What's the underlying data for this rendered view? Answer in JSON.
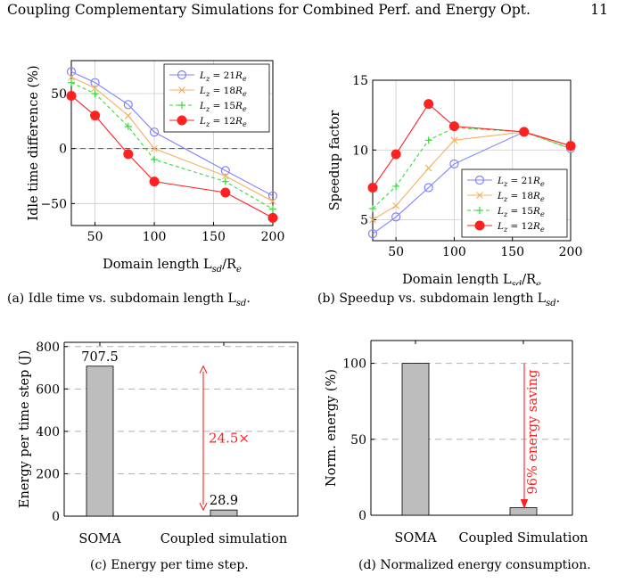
{
  "header": {
    "running_title": "Coupling Complementary Simulations for Combined Perf. and Energy Opt.",
    "page_number": "11"
  },
  "captions": {
    "a": "(a) Idle time vs. subdomain length L",
    "a_sub": "sd",
    "b": "(b) Speedup vs. subdomain length L",
    "b_sub": "sd",
    "c": "(c) Energy per time step.",
    "d": "(d) Normalized energy consumption."
  },
  "chart_data": [
    {
      "id": "a",
      "type": "line",
      "ylabel": "Idle time difference (%)",
      "xlabel_main": "Domain length L",
      "xlabel_sub": "sd",
      "xlabel_tail": "/R",
      "xlabel_tail_sub": "e",
      "xlim": [
        30,
        200
      ],
      "ylim": [
        -70,
        80
      ],
      "xticks": [
        50,
        100,
        150,
        200
      ],
      "yticks": [
        -50,
        0,
        50
      ],
      "x": [
        30,
        50,
        78,
        100,
        160,
        200
      ],
      "legend_position": "top-right",
      "series": [
        {
          "name": "L_z = 21R_e",
          "color": "#8080ff",
          "marker": "circle-open",
          "dash": "",
          "values": [
            70,
            60,
            40,
            15,
            -20,
            -43
          ]
        },
        {
          "name": "L_z = 18R_e",
          "color": "#f5b060",
          "marker": "cross",
          "dash": "",
          "values": [
            65,
            55,
            30,
            0,
            -25,
            -48
          ]
        },
        {
          "name": "L_z = 15R_e",
          "color": "#33dd33",
          "marker": "plus",
          "dash": "4 3",
          "values": [
            60,
            50,
            20,
            -10,
            -30,
            -55
          ]
        },
        {
          "name": "L_z = 12R_e",
          "color": "#ff2020",
          "marker": "circle-filled",
          "dash": "",
          "values": [
            48,
            30,
            -5,
            -30,
            -40,
            -63
          ]
        }
      ]
    },
    {
      "id": "b",
      "type": "line",
      "ylabel": "Speedup factor",
      "xlabel_main": "Domain length L",
      "xlabel_sub": "sd",
      "xlabel_tail": "/R",
      "xlabel_tail_sub": "e",
      "xlim": [
        30,
        200
      ],
      "ylim": [
        3.5,
        15
      ],
      "xticks": [
        50,
        100,
        150,
        200
      ],
      "yticks": [
        5,
        10,
        15
      ],
      "x": [
        30,
        50,
        78,
        100,
        160,
        200
      ],
      "legend_position": "bottom-right",
      "series": [
        {
          "name": "L_z = 21R_e",
          "color": "#8080ff",
          "marker": "circle-open",
          "dash": "",
          "values": [
            4.0,
            5.2,
            7.3,
            9.0,
            11.3,
            10.1
          ]
        },
        {
          "name": "L_z = 18R_e",
          "color": "#f5b060",
          "marker": "cross",
          "dash": "",
          "values": [
            5.0,
            6.0,
            8.7,
            10.7,
            11.3,
            10.1
          ]
        },
        {
          "name": "L_z = 15R_e",
          "color": "#33dd33",
          "marker": "plus",
          "dash": "4 3",
          "values": [
            5.8,
            7.4,
            10.7,
            11.6,
            11.3,
            10.1
          ]
        },
        {
          "name": "L_z = 12R_e",
          "color": "#ff2020",
          "marker": "circle-filled",
          "dash": "",
          "values": [
            7.3,
            9.7,
            13.3,
            11.7,
            11.3,
            10.3
          ]
        }
      ]
    },
    {
      "id": "c",
      "type": "bar",
      "ylabel": "Energy per time step (J)",
      "categories": [
        "SOMA",
        "Coupled simulation"
      ],
      "values": [
        707.5,
        28.9
      ],
      "value_labels": [
        "707.5",
        "28.9"
      ],
      "ylim": [
        0,
        820
      ],
      "yticks": [
        0,
        200,
        400,
        600,
        800
      ],
      "bar_color": "#bdbdbd",
      "annotation": "24.5×",
      "annotation_color": "#ff2020"
    },
    {
      "id": "d",
      "type": "bar",
      "ylabel": "Norm. energy (%)",
      "categories": [
        "SOMA",
        "Coupled Simulation"
      ],
      "values": [
        100,
        5
      ],
      "ylim": [
        0,
        115
      ],
      "yticks": [
        0,
        50,
        100
      ],
      "bar_color": "#bdbdbd",
      "annotation": "96% energy saving",
      "annotation_color": "#ff2020"
    }
  ]
}
